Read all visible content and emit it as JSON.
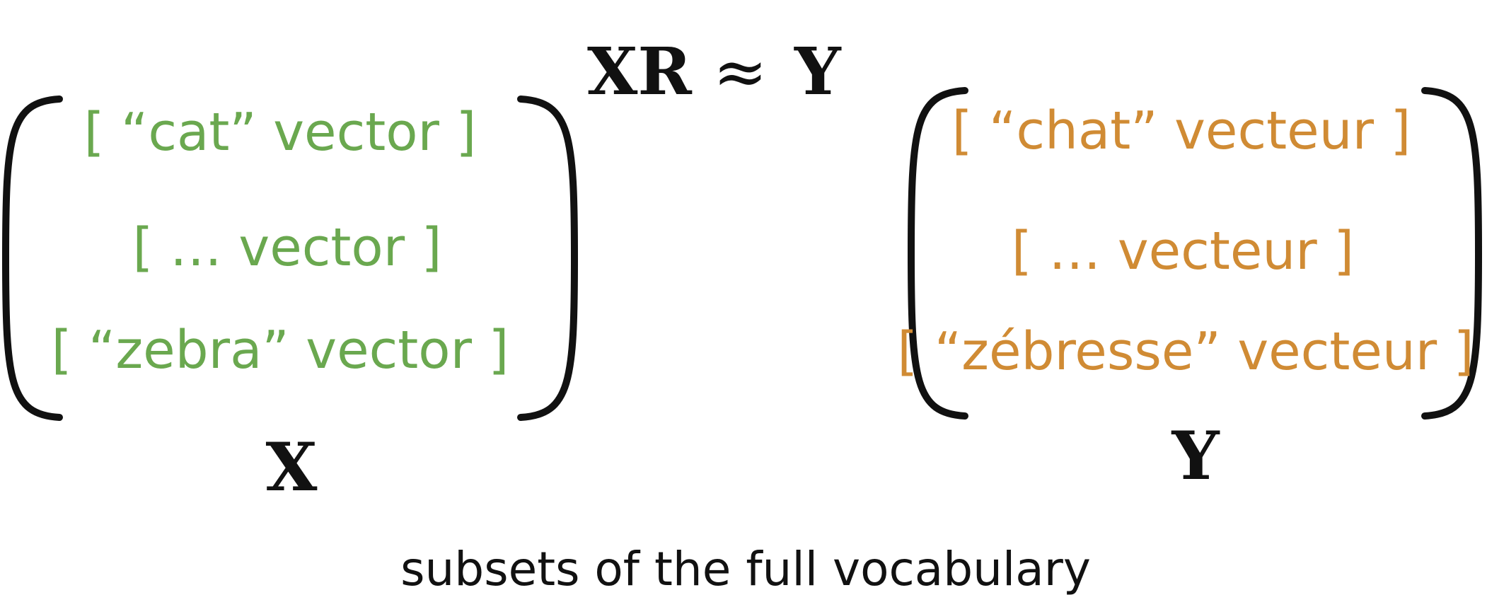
{
  "equation": {
    "lhs": "XR",
    "operator": "≈",
    "rhs": "Y"
  },
  "matrix_x": {
    "label": "X",
    "color": "#6aa84f",
    "rows": [
      "[ “cat” vector ]",
      "[ … vector ]",
      "[ “zebra” vector ]"
    ]
  },
  "matrix_y": {
    "label": "Y",
    "color": "#d08b34",
    "rows": [
      "[ “chat” vecteur ]",
      "[ … vecteur ]",
      "[ “zébresse” vecteur ]"
    ]
  },
  "caption": "subsets of the full vocabulary"
}
